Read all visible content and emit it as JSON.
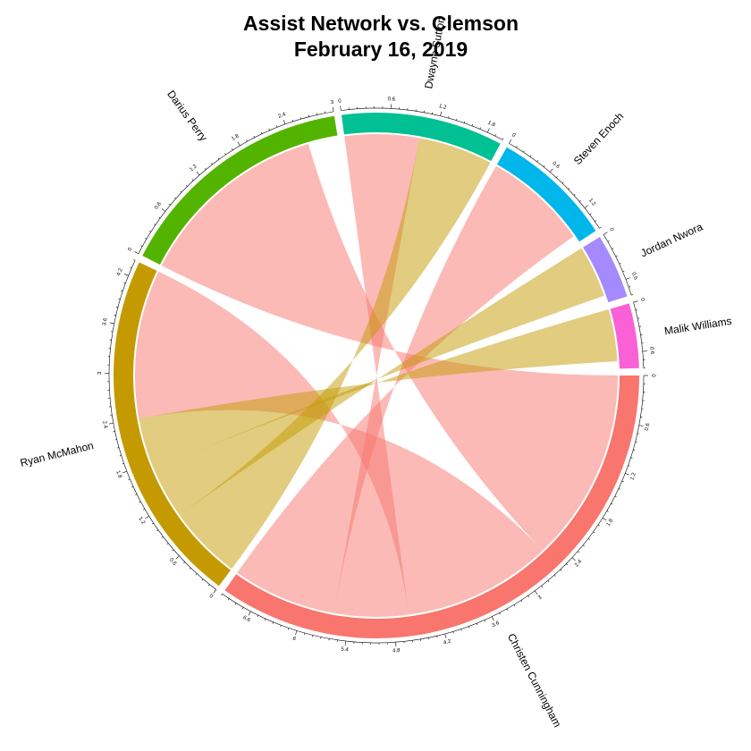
{
  "chart_data": {
    "type": "chord",
    "title": "Assist Network vs. Clemson",
    "subtitle": "February 16, 2019",
    "sectors": [
      {
        "name": "Christen Cunningham",
        "total": 7.0,
        "color": "#F8766D",
        "ticks": [
          0,
          0.6,
          1.2,
          1.8,
          2.4,
          3,
          3.6,
          4.2,
          4.8,
          5.4,
          6,
          6.6
        ]
      },
      {
        "name": "Ryan McMahon",
        "total": 4.4,
        "color": "#C49A00",
        "ticks": [
          0,
          0.6,
          1.2,
          1.8,
          2.4,
          3,
          3.6,
          4.2
        ]
      },
      {
        "name": "Darius Perry",
        "total": 3.0,
        "color": "#53B400",
        "ticks": [
          0,
          0.6,
          1.2,
          1.8,
          2.4,
          3
        ]
      },
      {
        "name": "Dwayne Sutton",
        "total": 2.0,
        "color": "#00C094",
        "ticks": [
          0,
          0.6,
          1.2,
          1.8
        ]
      },
      {
        "name": "Steven Enoch",
        "total": 1.5,
        "color": "#00B6EB",
        "ticks": [
          0,
          0.6,
          1.2
        ]
      },
      {
        "name": "Jordan Nwora",
        "total": 0.8,
        "color": "#A58AFF",
        "ticks": [
          0,
          0.6
        ]
      },
      {
        "name": "Malik Williams",
        "total": 0.8,
        "color": "#FB61D7",
        "ticks": [
          0,
          0.6
        ]
      }
    ],
    "links": [
      {
        "from": "Christen Cunningham",
        "to": "Darius Perry",
        "value": 2.6
      },
      {
        "from": "Christen Cunningham",
        "to": "Ryan McMahon",
        "value": 2.0
      },
      {
        "from": "Christen Cunningham",
        "to": "Dwayne Sutton",
        "value": 1.0
      },
      {
        "from": "Christen Cunningham",
        "to": "Steven Enoch",
        "value": 1.4
      },
      {
        "from": "Ryan McMahon",
        "to": "Dwayne Sutton",
        "value": 1.0
      },
      {
        "from": "Ryan McMahon",
        "to": "Jordan Nwora",
        "value": 0.7
      },
      {
        "from": "Ryan McMahon",
        "to": "Malik Williams",
        "value": 0.7
      }
    ],
    "link_colors": {
      "Christen Cunningham": "#F8766D",
      "Ryan McMahon": "#C49A00"
    }
  }
}
